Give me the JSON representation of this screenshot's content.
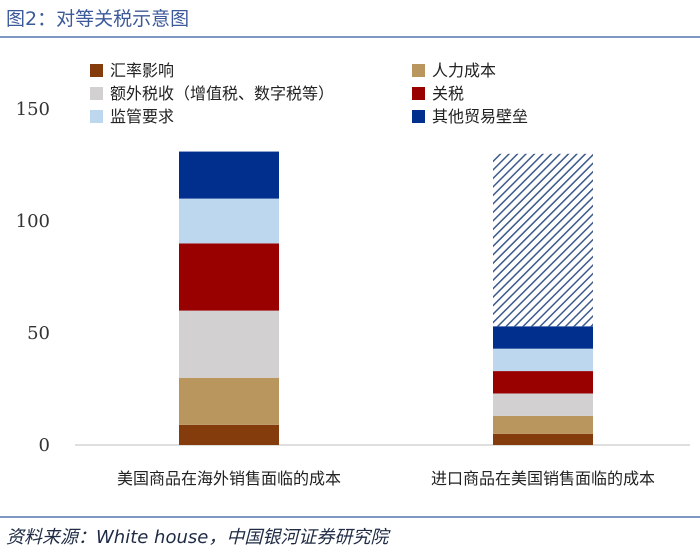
{
  "header": {
    "title": "图2：对等关税示意图"
  },
  "footer": {
    "source": "资料来源：White house，中国银河证券研究院"
  },
  "chart_data": {
    "type": "bar",
    "stacked": true,
    "categories": [
      "美国商品在海外销售面临的成本",
      "进口商品在美国销售面临的成本"
    ],
    "y_ticks": [
      "0",
      "50",
      "100",
      "150"
    ],
    "ylim": [
      0,
      170
    ],
    "legend_position": "top",
    "series": [
      {
        "name": "汇率影响",
        "color": "#843c0c",
        "values": [
          9,
          5
        ]
      },
      {
        "name": "人力成本",
        "color": "#b9965e",
        "values": [
          21,
          8
        ]
      },
      {
        "name": "额外税收（增值税、数字税等）",
        "color": "#d2d0d1",
        "values": [
          30,
          10
        ]
      },
      {
        "name": "关税",
        "color": "#990000",
        "values": [
          30,
          10
        ]
      },
      {
        "name": "监管要求",
        "color": "#bdd7ee",
        "values": [
          20,
          10
        ]
      },
      {
        "name": "其他贸易壁垒",
        "color": "#002f8e",
        "values": [
          21,
          10
        ]
      },
      {
        "name": "",
        "color": "#3c5a8c",
        "pattern": "diagonal-hatch",
        "values": [
          0,
          77
        ]
      }
    ]
  }
}
